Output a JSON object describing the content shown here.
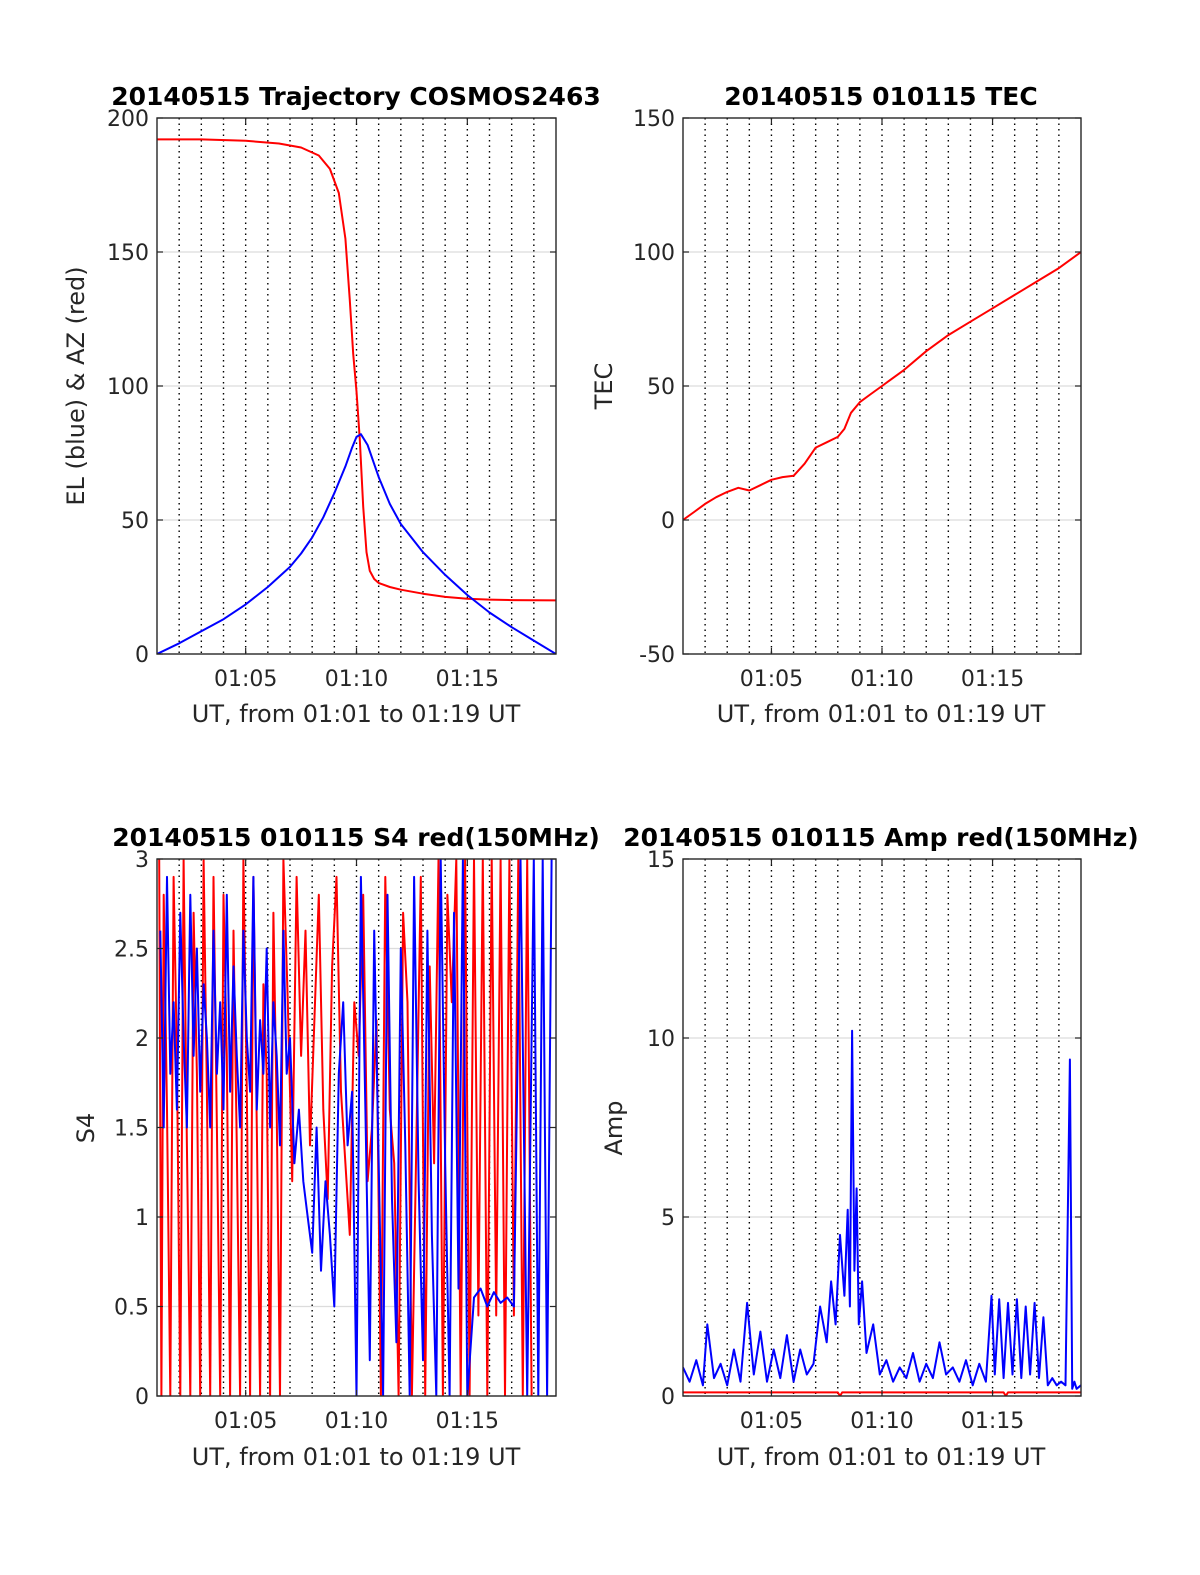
{
  "figure": {
    "background": "#ffffff"
  },
  "chart_data": [
    {
      "id": "traj",
      "type": "line",
      "title": "20140515 Trajectory COSMOS2463",
      "xlabel": "UT, from 01:01 to 01:19 UT",
      "ylabel": "EL (blue) & AZ (red)",
      "xlim": [
        1.0,
        19.0
      ],
      "ylim": [
        0,
        200
      ],
      "yticks": [
        0,
        50,
        100,
        150,
        200
      ],
      "ytick_labels": [
        "0",
        "50",
        "100",
        "150",
        "200"
      ],
      "xticks": [
        5,
        10,
        15
      ],
      "xtick_labels": [
        "01:05",
        "01:10",
        "01:15"
      ],
      "dotted_grid_x": [
        2,
        3,
        4,
        5,
        6,
        7,
        8,
        9,
        10,
        11,
        12,
        13,
        14,
        15,
        16,
        17,
        18
      ],
      "hgrid": true,
      "series": [
        {
          "color": "#ff0000",
          "x": [
            1.0,
            3.0,
            5.0,
            6.5,
            7.5,
            8.3,
            8.8,
            9.2,
            9.5,
            9.7,
            9.85,
            10.0,
            10.15,
            10.3,
            10.45,
            10.6,
            10.8,
            11.0,
            11.5,
            12.0,
            13.0,
            14.0,
            15.0,
            16.0,
            17.0,
            19.0
          ],
          "y": [
            192,
            192,
            191.5,
            190.5,
            189,
            186,
            181,
            172,
            155,
            132,
            112,
            98,
            80,
            55,
            38,
            31,
            28,
            26.5,
            25,
            24,
            22.5,
            21.3,
            20.6,
            20.3,
            20.1,
            20
          ]
        },
        {
          "color": "#0000ff",
          "x": [
            1.0,
            2.0,
            3.0,
            4.0,
            5.0,
            6.0,
            7.0,
            7.5,
            8.0,
            8.5,
            9.0,
            9.5,
            9.8,
            10.0,
            10.2,
            10.5,
            11.0,
            11.5,
            12.0,
            13.0,
            14.0,
            15.0,
            16.0,
            17.0,
            18.0,
            19.0
          ],
          "y": [
            0,
            4,
            8.5,
            13,
            18.5,
            25,
            32.5,
            37.5,
            43.5,
            51,
            60,
            70,
            77,
            81,
            82,
            78,
            66,
            56,
            48.5,
            38,
            29.5,
            22,
            15.5,
            10,
            5,
            0
          ]
        }
      ]
    },
    {
      "id": "tec",
      "type": "line",
      "title": "20140515 010115 TEC",
      "xlabel": "UT, from 01:01 to 01:19 UT",
      "ylabel": "TEC",
      "xlim": [
        1.0,
        19.0
      ],
      "ylim": [
        -50,
        150
      ],
      "yticks": [
        -50,
        0,
        50,
        100,
        150
      ],
      "ytick_labels": [
        "-50",
        "0",
        "50",
        "100",
        "150"
      ],
      "xticks": [
        5,
        10,
        15
      ],
      "xtick_labels": [
        "01:05",
        "01:10",
        "01:15"
      ],
      "dotted_grid_x": [
        2,
        3,
        4,
        5,
        6,
        7,
        8,
        9,
        10,
        11,
        12,
        13,
        14,
        15,
        16,
        17,
        18
      ],
      "hgrid": true,
      "series": [
        {
          "color": "#ff0000",
          "x": [
            1.0,
            1.5,
            2.0,
            2.5,
            3.0,
            3.5,
            4.0,
            4.5,
            5.0,
            5.5,
            6.0,
            6.5,
            7.0,
            7.5,
            8.0,
            8.3,
            8.6,
            9.0,
            9.5,
            10.0,
            11.0,
            12.0,
            13.0,
            14.0,
            15.0,
            16.0,
            17.0,
            18.0,
            19.0
          ],
          "y": [
            0,
            3,
            6,
            8.5,
            10.5,
            12,
            11,
            13,
            15,
            16,
            16.5,
            21,
            27,
            29,
            31,
            34,
            40,
            44,
            47,
            50,
            56,
            63,
            69,
            74,
            79,
            84,
            89,
            94,
            100
          ]
        }
      ]
    },
    {
      "id": "s4",
      "type": "line",
      "title": "20140515 010115 S4 red(150MHz)",
      "xlabel": "UT, from 01:01 to 01:19 UT",
      "ylabel": "S4",
      "xlim": [
        1.0,
        19.0
      ],
      "ylim": [
        0,
        3
      ],
      "yticks": [
        0,
        0.5,
        1,
        1.5,
        2,
        2.5,
        3
      ],
      "ytick_labels": [
        "0",
        "0.5",
        "1",
        "1.5",
        "2",
        "2.5",
        "3"
      ],
      "xticks": [
        5,
        10,
        15
      ],
      "xtick_labels": [
        "01:05",
        "01:10",
        "01:15"
      ],
      "dotted_grid_x": [
        2,
        3,
        4,
        5,
        6,
        7,
        8,
        9,
        10,
        11,
        12,
        13,
        14,
        15,
        16,
        17,
        18
      ],
      "hgrid": true,
      "series": [
        {
          "color": "#ff0000",
          "x": [
            1.1,
            1.2,
            1.3,
            1.45,
            1.6,
            1.75,
            1.9,
            2.05,
            2.2,
            2.35,
            2.5,
            2.65,
            2.8,
            2.95,
            3.1,
            3.25,
            3.4,
            3.55,
            3.7,
            3.85,
            4.0,
            4.15,
            4.3,
            4.45,
            4.6,
            4.75,
            4.9,
            5.05,
            5.2,
            5.35,
            5.5,
            5.65,
            5.8,
            5.95,
            6.1,
            6.25,
            6.4,
            6.55,
            6.7,
            6.9,
            7.1,
            7.3,
            7.5,
            7.7,
            7.9,
            8.1,
            8.3,
            8.5,
            8.7,
            8.9,
            9.1,
            9.3,
            9.5,
            9.7,
            9.9,
            10.1,
            10.3,
            10.5,
            10.7,
            10.9,
            11.1,
            11.3,
            11.5,
            11.7,
            11.9,
            12.1,
            12.3,
            12.5,
            12.7,
            12.9,
            13.1,
            13.3,
            13.5,
            13.7,
            13.9,
            14.1,
            14.3,
            14.5,
            14.7,
            14.9,
            15.1,
            15.3,
            15.5,
            15.7,
            15.9,
            16.1,
            16.3,
            16.5,
            16.7,
            16.9,
            17.1,
            17.3,
            17.5,
            17.7,
            17.9
          ],
          "y": [
            3,
            0,
            2.8,
            1.6,
            0,
            2.9,
            1.9,
            0,
            3,
            1.4,
            0,
            2.7,
            1.8,
            0,
            3,
            1.7,
            0,
            2.9,
            1.5,
            0,
            2.8,
            1.9,
            0,
            2.6,
            1.4,
            0,
            3,
            1.7,
            0,
            2.9,
            1.5,
            0,
            2.3,
            1.8,
            0,
            2.7,
            1.6,
            0,
            3,
            2.2,
            1.2,
            2.9,
            1.9,
            2.6,
            1.4,
            2.1,
            2.8,
            1.6,
            1.1,
            2.4,
            2.9,
            1.7,
            1.3,
            0.9,
            2.2,
            1.9,
            2.8,
            1.2,
            1.5,
            2.1,
            0,
            2.9,
            1.6,
            1.3,
            0,
            2.7,
            2.2,
            0,
            1.4,
            2.9,
            0,
            2.4,
            1.3,
            3,
            0,
            2.8,
            2.2,
            3,
            0,
            3,
            0,
            3,
            0.45,
            3,
            0,
            3,
            0.45,
            3,
            0,
            3,
            0.45,
            3,
            0,
            3,
            0
          ]
        },
        {
          "color": "#0000ff",
          "x": [
            1.15,
            1.3,
            1.45,
            1.6,
            1.75,
            1.9,
            2.05,
            2.2,
            2.35,
            2.5,
            2.65,
            2.8,
            2.95,
            3.1,
            3.25,
            3.4,
            3.55,
            3.7,
            3.85,
            4.0,
            4.15,
            4.3,
            4.45,
            4.6,
            4.75,
            4.9,
            5.05,
            5.2,
            5.35,
            5.5,
            5.65,
            5.8,
            5.95,
            6.1,
            6.25,
            6.4,
            6.55,
            6.7,
            6.85,
            7.0,
            7.2,
            7.4,
            7.6,
            7.8,
            8.0,
            8.2,
            8.4,
            8.6,
            8.8,
            9.0,
            9.2,
            9.4,
            9.6,
            9.8,
            10.0,
            10.2,
            10.4,
            10.6,
            10.8,
            11.0,
            11.2,
            11.4,
            11.6,
            11.8,
            12.0,
            12.2,
            12.4,
            12.6,
            12.8,
            13.0,
            13.2,
            13.4,
            13.6,
            13.8,
            14.0,
            14.2,
            14.4,
            14.6,
            14.8,
            15.0,
            15.3,
            15.6,
            15.9,
            16.2,
            16.5,
            16.8,
            17.1,
            17.4,
            17.7,
            18.0,
            18.2,
            18.4,
            18.6,
            18.8
          ],
          "y": [
            2.6,
            1.5,
            2.9,
            1.8,
            2.2,
            1.6,
            2.7,
            2.0,
            1.5,
            2.8,
            1.9,
            2.5,
            1.7,
            2.3,
            2.0,
            1.5,
            2.6,
            1.8,
            2.2,
            1.6,
            2.8,
            1.7,
            2.4,
            1.9,
            1.5,
            2.6,
            2.0,
            1.7,
            2.9,
            1.6,
            2.1,
            1.8,
            2.5,
            1.5,
            2.2,
            1.9,
            1.4,
            2.6,
            1.8,
            2.0,
            1.3,
            1.6,
            1.2,
            1.0,
            0.8,
            1.5,
            0.7,
            1.2,
            0.9,
            0.5,
            1.8,
            2.2,
            1.4,
            1.7,
            0.0,
            2.9,
            1.6,
            0.2,
            2.6,
            1.3,
            0.0,
            2.8,
            1.1,
            0.3,
            2.5,
            1.4,
            0.0,
            2.9,
            1.2,
            0.2,
            2.6,
            0.9,
            0.0,
            3.0,
            1.3,
            0.0,
            2.7,
            0.6,
            3.0,
            0.0,
            0.55,
            0.6,
            0.5,
            0.58,
            0.52,
            0.55,
            0.5,
            3.0,
            0.0,
            3.0,
            0.0,
            3.0,
            0.0,
            3.0
          ]
        }
      ]
    },
    {
      "id": "amp",
      "type": "line",
      "title": "20140515 010115 Amp red(150MHz)",
      "xlabel": "UT, from 01:01 to 01:19 UT",
      "ylabel": "Amp",
      "xlim": [
        1.0,
        19.0
      ],
      "ylim": [
        0,
        15
      ],
      "yticks": [
        0,
        5,
        10,
        15
      ],
      "ytick_labels": [
        "0",
        "5",
        "10",
        "15"
      ],
      "xticks": [
        5,
        10,
        15
      ],
      "xtick_labels": [
        "01:05",
        "01:10",
        "01:15"
      ],
      "dotted_grid_x": [
        2,
        3,
        4,
        5,
        6,
        7,
        8,
        9,
        10,
        11,
        12,
        13,
        14,
        15,
        16,
        17,
        18
      ],
      "hgrid": true,
      "series": [
        {
          "color": "#ff0000",
          "x": [
            1.0,
            8.0,
            8.1,
            8.2,
            15.5,
            15.6,
            15.7,
            19.0
          ],
          "y": [
            0.1,
            0.1,
            0.0,
            0.1,
            0.1,
            0.0,
            0.1,
            0.1
          ]
        },
        {
          "color": "#0000ff",
          "x": [
            1.0,
            1.3,
            1.6,
            1.9,
            2.1,
            2.4,
            2.7,
            3.0,
            3.3,
            3.6,
            3.9,
            4.2,
            4.5,
            4.8,
            5.1,
            5.4,
            5.7,
            6.0,
            6.3,
            6.6,
            6.9,
            7.2,
            7.5,
            7.7,
            7.9,
            8.1,
            8.3,
            8.45,
            8.55,
            8.65,
            8.75,
            8.85,
            8.95,
            9.1,
            9.3,
            9.6,
            9.9,
            10.2,
            10.5,
            10.8,
            11.1,
            11.4,
            11.7,
            12.0,
            12.3,
            12.6,
            12.9,
            13.2,
            13.5,
            13.8,
            14.1,
            14.4,
            14.7,
            14.95,
            15.1,
            15.3,
            15.5,
            15.7,
            15.9,
            16.1,
            16.3,
            16.5,
            16.7,
            16.9,
            17.1,
            17.3,
            17.5,
            17.7,
            17.9,
            18.1,
            18.3,
            18.5,
            18.6,
            18.7,
            18.8,
            19.0
          ],
          "y": [
            0.8,
            0.4,
            1.0,
            0.3,
            2.0,
            0.5,
            0.9,
            0.3,
            1.3,
            0.4,
            2.6,
            0.6,
            1.8,
            0.4,
            1.3,
            0.5,
            1.7,
            0.4,
            1.3,
            0.6,
            0.9,
            2.5,
            1.5,
            3.2,
            2.0,
            4.5,
            2.8,
            5.2,
            2.5,
            10.2,
            3.5,
            5.8,
            2.0,
            3.2,
            1.2,
            2.0,
            0.6,
            1.0,
            0.4,
            0.8,
            0.5,
            1.2,
            0.4,
            0.9,
            0.5,
            1.5,
            0.6,
            0.8,
            0.4,
            1.0,
            0.3,
            0.9,
            0.4,
            2.8,
            0.6,
            2.7,
            0.5,
            2.6,
            0.6,
            2.7,
            0.5,
            2.5,
            0.6,
            2.6,
            0.5,
            2.2,
            0.3,
            0.5,
            0.3,
            0.4,
            0.3,
            9.4,
            0.2,
            0.4,
            0.2,
            0.3
          ]
        }
      ]
    }
  ]
}
